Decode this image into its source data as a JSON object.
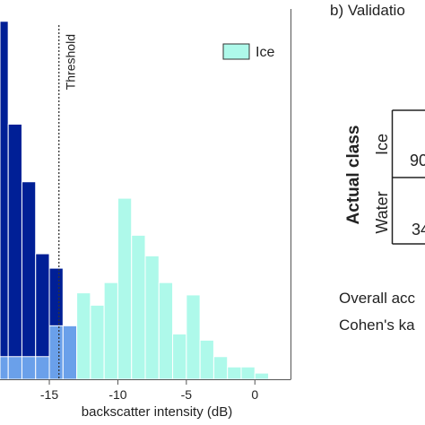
{
  "chart_data": {
    "type": "bar",
    "xlabel": "backscatter intensity (dB)",
    "xlim": [
      -18.6,
      2.6
    ],
    "ylim": [
      0,
      18
    ],
    "xticks": [
      {
        "value": -15,
        "label": "-15"
      },
      {
        "value": -10,
        "label": "-10"
      },
      {
        "value": -5,
        "label": "-5"
      },
      {
        "value": 0,
        "label": "0"
      }
    ],
    "bin_width": 1,
    "threshold": {
      "x": -14.3,
      "label": "Threshold"
    },
    "legend": {
      "label": "Ice",
      "placement": "top-right"
    },
    "series": [
      {
        "role": "water",
        "color": "#001f96",
        "bars": [
          {
            "x0": -19,
            "value": 17.4
          },
          {
            "x0": -18,
            "value": 12.4
          },
          {
            "x0": -17,
            "value": 9.6
          },
          {
            "x0": -16,
            "value": 6.1
          },
          {
            "x0": -15,
            "value": 5.4
          }
        ]
      },
      {
        "role": "overlap",
        "color": "#6aa0ea",
        "bars": [
          {
            "x0": -19,
            "value": 1.1
          },
          {
            "x0": -18,
            "value": 1.1
          },
          {
            "x0": -17,
            "value": 1.1
          },
          {
            "x0": -16,
            "value": 1.1
          },
          {
            "x0": -15,
            "value": 2.6
          },
          {
            "x0": -14,
            "value": 2.6
          }
        ]
      },
      {
        "name": "Ice",
        "color": "#aef9ea",
        "bars": [
          {
            "x0": -13,
            "value": 4.2
          },
          {
            "x0": -12,
            "value": 3.6
          },
          {
            "x0": -11,
            "value": 4.7
          },
          {
            "x0": -10,
            "value": 8.8
          },
          {
            "x0": -9,
            "value": 7.0
          },
          {
            "x0": -8,
            "value": 6.0
          },
          {
            "x0": -7,
            "value": 4.7
          },
          {
            "x0": -6,
            "value": 2.2
          },
          {
            "x0": -5,
            "value": 4.1
          },
          {
            "x0": -4,
            "value": 1.9
          },
          {
            "x0": -3,
            "value": 1.1
          },
          {
            "x0": -2,
            "value": 0.6
          },
          {
            "x0": -1,
            "value": 0.6
          },
          {
            "x0": 0,
            "value": 0.3
          }
        ]
      }
    ]
  },
  "panel_b": {
    "title": "b) Validatio",
    "ylabel": "Actual class",
    "row_labels": [
      "Ice",
      "Water"
    ],
    "cells": [
      "90",
      "34"
    ],
    "stat_lines": [
      "Overall acc",
      "Cohen's ka"
    ]
  },
  "colors": {
    "axis": "#555555",
    "bar_edge": "#ffffff",
    "text": "#222222"
  }
}
